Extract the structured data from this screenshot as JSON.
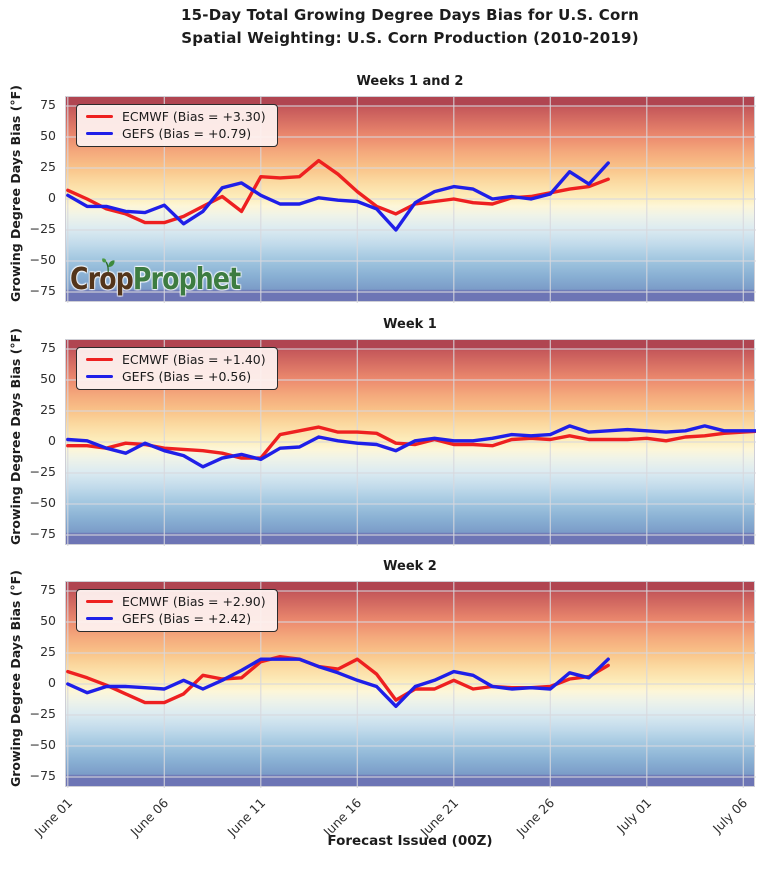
{
  "figure": {
    "title_line1": "15-Day Total Growing Degree Days Bias for U.S. Corn",
    "title_line2": "Spatial Weighting: U.S. Corn Production (2010-2019)"
  },
  "colors": {
    "ecmwf": "#ee2020",
    "gefs": "#1f1fe8",
    "grid": "#d8d8de",
    "watermark_crop": "#53351b",
    "watermark_prophet": "#3d7c41",
    "sprout_green": "#3d8a3d"
  },
  "watermark": {
    "part1": "Crop",
    "part2": "Prophet"
  },
  "x_axis": {
    "label": "Forecast Issued (00Z)",
    "ticks": [
      {
        "label": "June 01",
        "day": 1
      },
      {
        "label": "June 06",
        "day": 6
      },
      {
        "label": "June 11",
        "day": 11
      },
      {
        "label": "June 16",
        "day": 16
      },
      {
        "label": "June 21",
        "day": 21
      },
      {
        "label": "June 26",
        "day": 26
      },
      {
        "label": "July 01",
        "day": 31
      },
      {
        "label": "July 06",
        "day": 36
      }
    ]
  },
  "y_axis": {
    "label": "Growing Degree Days Bias (°F)",
    "ticks": [
      {
        "label": "75",
        "value": 75
      },
      {
        "label": "50",
        "value": 50
      },
      {
        "label": "25",
        "value": 25
      },
      {
        "label": "0",
        "value": 0
      },
      {
        "label": "−25",
        "value": -25
      },
      {
        "label": "−50",
        "value": -50
      },
      {
        "label": "−75",
        "value": -75
      }
    ]
  },
  "chart_data": [
    {
      "type": "line",
      "title": "Weeks 1 and 2",
      "xlabel": "Forecast Issued (00Z)",
      "ylabel": "Growing Degree Days Bias (°F)",
      "ylim": [
        -84,
        84
      ],
      "grid": true,
      "legend_position": "upper left",
      "x_start": "June 01",
      "x_interval_days": 1,
      "legend": [
        {
          "label": "ECMWF (Bias = +3.30)"
        },
        {
          "label": "GEFS (Bias = +0.79)"
        }
      ],
      "series": [
        {
          "name": "ECMWF",
          "color_key": "ecmwf",
          "values": [
            7,
            0,
            -8,
            -12,
            -19,
            -19,
            -14,
            -6,
            2,
            -10,
            18,
            17,
            18,
            31,
            20,
            6,
            -6,
            -12,
            -4,
            -2,
            0,
            -3,
            -4,
            1,
            2,
            5,
            8,
            10,
            16
          ]
        },
        {
          "name": "GEFS",
          "color_key": "gefs",
          "values": [
            3,
            -6,
            -6,
            -10,
            -11,
            -5,
            -20,
            -10,
            9,
            13,
            3,
            -4,
            -4,
            1,
            -1,
            -2,
            -8,
            -25,
            -3,
            6,
            10,
            8,
            0,
            2,
            0,
            4,
            22,
            12,
            29
          ]
        }
      ]
    },
    {
      "type": "line",
      "title": "Week 1",
      "xlabel": "Forecast Issued (00Z)",
      "ylabel": "Growing Degree Days Bias (°F)",
      "ylim": [
        -84,
        84
      ],
      "grid": true,
      "legend_position": "upper left",
      "x_start": "June 01",
      "x_interval_days": 1,
      "legend": [
        {
          "label": "ECMWF (Bias = +1.40)"
        },
        {
          "label": "GEFS (Bias = +0.56)"
        }
      ],
      "series": [
        {
          "name": "ECMWF",
          "color_key": "ecmwf",
          "values": [
            -3,
            -3,
            -5,
            -1,
            -2,
            -5,
            -6,
            -7,
            -9,
            -13,
            -13,
            6,
            9,
            12,
            8,
            8,
            7,
            -1,
            -2,
            2,
            -2,
            -2,
            -3,
            2,
            3,
            2,
            5,
            2,
            2,
            2,
            3,
            1,
            4,
            5,
            7,
            8,
            9
          ]
        },
        {
          "name": "GEFS",
          "color_key": "gefs",
          "values": [
            2,
            1,
            -5,
            -9,
            -1,
            -7,
            -11,
            -20,
            -13,
            -10,
            -14,
            -5,
            -4,
            4,
            1,
            -1,
            -2,
            -7,
            1,
            3,
            1,
            1,
            3,
            6,
            5,
            6,
            13,
            8,
            9,
            10,
            9,
            8,
            9,
            13,
            9,
            9,
            9
          ]
        }
      ]
    },
    {
      "type": "line",
      "title": "Week 2",
      "xlabel": "Forecast Issued (00Z)",
      "ylabel": "Growing Degree Days Bias (°F)",
      "ylim": [
        -84,
        84
      ],
      "grid": true,
      "legend_position": "upper left",
      "x_start": "June 01",
      "x_interval_days": 1,
      "legend": [
        {
          "label": "ECMWF (Bias = +2.90)"
        },
        {
          "label": "GEFS (Bias = +2.42)"
        }
      ],
      "series": [
        {
          "name": "ECMWF",
          "color_key": "ecmwf",
          "values": [
            10,
            5,
            -1,
            -8,
            -15,
            -15,
            -8,
            7,
            4,
            5,
            18,
            22,
            20,
            14,
            12,
            20,
            8,
            -13,
            -4,
            -4,
            3,
            -4,
            -2,
            -3,
            -3,
            -2,
            4,
            6,
            15
          ]
        },
        {
          "name": "GEFS",
          "color_key": "gefs",
          "values": [
            0,
            -7,
            -2,
            -2,
            -3,
            -4,
            3,
            -4,
            3,
            11,
            20,
            20,
            20,
            14,
            9,
            3,
            -2,
            -18,
            -2,
            3,
            10,
            7,
            -2,
            -4,
            -3,
            -4,
            9,
            5,
            20
          ]
        }
      ]
    }
  ]
}
